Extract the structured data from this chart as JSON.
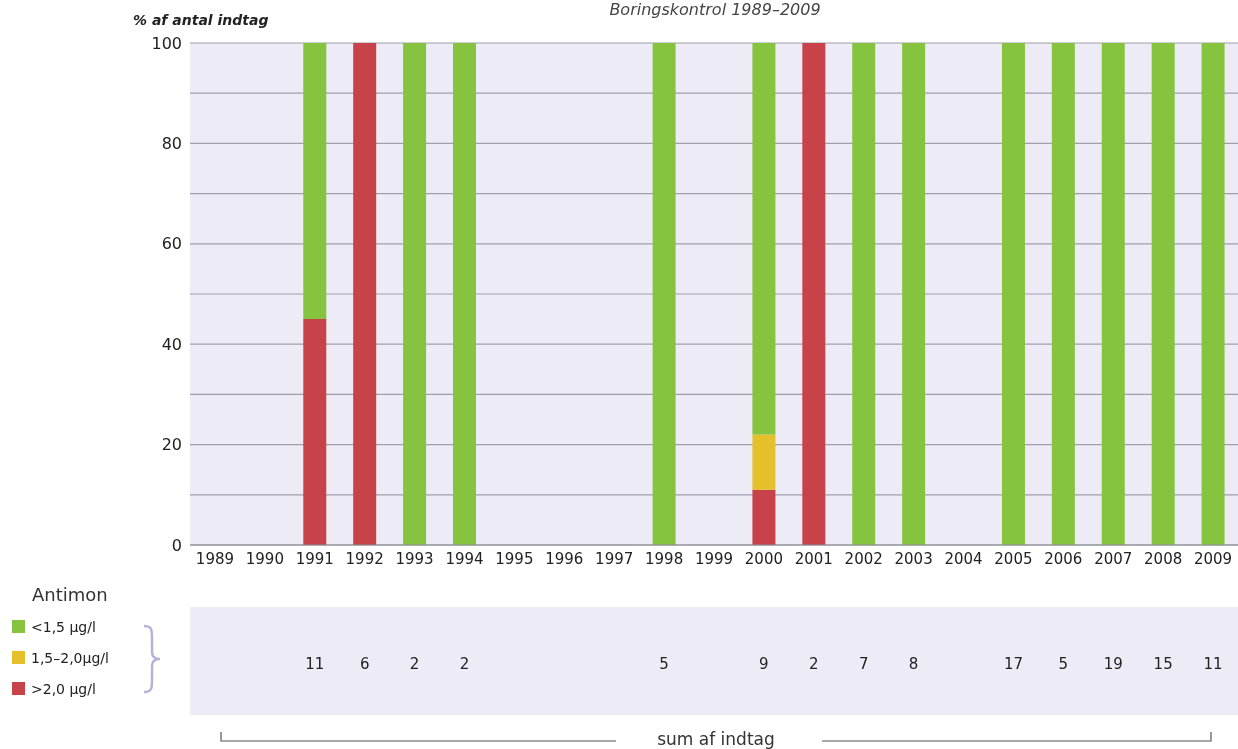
{
  "chart_data": [
    {
      "type": "bar",
      "title": "Boringskontrol 1989–2009",
      "ylabel": "% af antal indtag",
      "legend_title": "Antimon",
      "stacked": true,
      "grid": "y",
      "legend": "bottom left",
      "categories": [
        "1989",
        "1990",
        "1991",
        "1992",
        "1993",
        "1994",
        "1995",
        "1996",
        "1997",
        "1998",
        "1999",
        "2000",
        "2001",
        "2002",
        "2003",
        "2004",
        "2005",
        "2006",
        "2007",
        "2008",
        "2009"
      ],
      "ylim": [
        0,
        100
      ],
      "yticks": [
        0,
        {
          "value": 10,
          "label": null
        },
        20,
        {
          "value": 30,
          "label": null
        },
        40,
        {
          "value": 50,
          "label": null
        },
        60,
        {
          "value": 70,
          "label": null
        },
        80,
        {
          "value": 90,
          "label": null
        },
        100
      ],
      "series": [
        {
          "name": ">2,0 µg/l",
          "color": "#c8424a",
          "values": [
            null,
            null,
            45,
            100,
            null,
            null,
            null,
            null,
            null,
            null,
            null,
            11,
            100,
            null,
            null,
            null,
            null,
            null,
            null,
            null,
            null
          ]
        },
        {
          "name": "1,5–2,0µg/l",
          "color": "#e5c02a",
          "values": [
            null,
            null,
            null,
            null,
            null,
            null,
            null,
            null,
            null,
            null,
            null,
            11,
            null,
            null,
            null,
            null,
            null,
            null,
            null,
            null,
            null
          ]
        },
        {
          "name": "<1,5 µg/l",
          "color": "#86c440",
          "values": [
            null,
            null,
            55,
            null,
            100,
            100,
            null,
            null,
            null,
            100,
            null,
            78,
            null,
            100,
            100,
            null,
            100,
            100,
            100,
            100,
            100
          ]
        }
      ]
    },
    {
      "type": "other",
      "categories": [
        null,
        null,
        null,
        null,
        null,
        null,
        null,
        null,
        null,
        null,
        null,
        null,
        null,
        null,
        null,
        null,
        null,
        null,
        null,
        null,
        null
      ],
      "values": [
        null,
        null,
        11,
        6,
        2,
        2,
        null,
        null,
        null,
        5,
        null,
        9,
        2,
        7,
        8,
        null,
        17,
        5,
        19,
        15,
        11
      ],
      "data_labels": true,
      "annotations": [
        "sum af indtag"
      ]
    }
  ]
}
